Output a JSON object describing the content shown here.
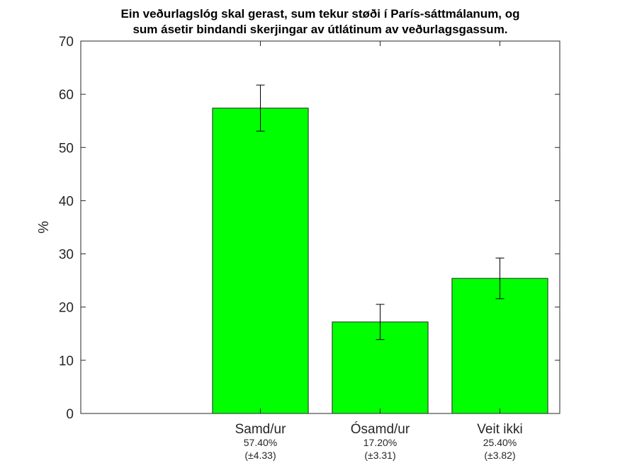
{
  "chart_data": {
    "type": "bar",
    "title_lines": [
      "Ein veðurlagslóg skal gerast, sum tekur støði í París-sáttmálanum, og",
      "sum ásetir bindandi skerjingar av útlátinum av veðurlagsgassum."
    ],
    "xlabel": "",
    "ylabel": "%",
    "ylim": [
      0,
      70
    ],
    "yticks": [
      0,
      10,
      20,
      30,
      40,
      50,
      60,
      70
    ],
    "xlim": [
      0.5,
      4.5
    ],
    "bar_color": "#00ff00",
    "grid": false,
    "categories": [
      {
        "label": "Samd/ur",
        "value": 57.4,
        "error": 4.33,
        "value_text": "57.40%",
        "error_text": "(±4.33)"
      },
      {
        "label": "Ósamd/ur",
        "value": 17.2,
        "error": 3.31,
        "value_text": "17.20%",
        "error_text": "(±3.31)"
      },
      {
        "label": "Veit ikki",
        "value": 25.4,
        "error": 3.82,
        "value_text": "25.40%",
        "error_text": "(±3.82)"
      }
    ]
  }
}
